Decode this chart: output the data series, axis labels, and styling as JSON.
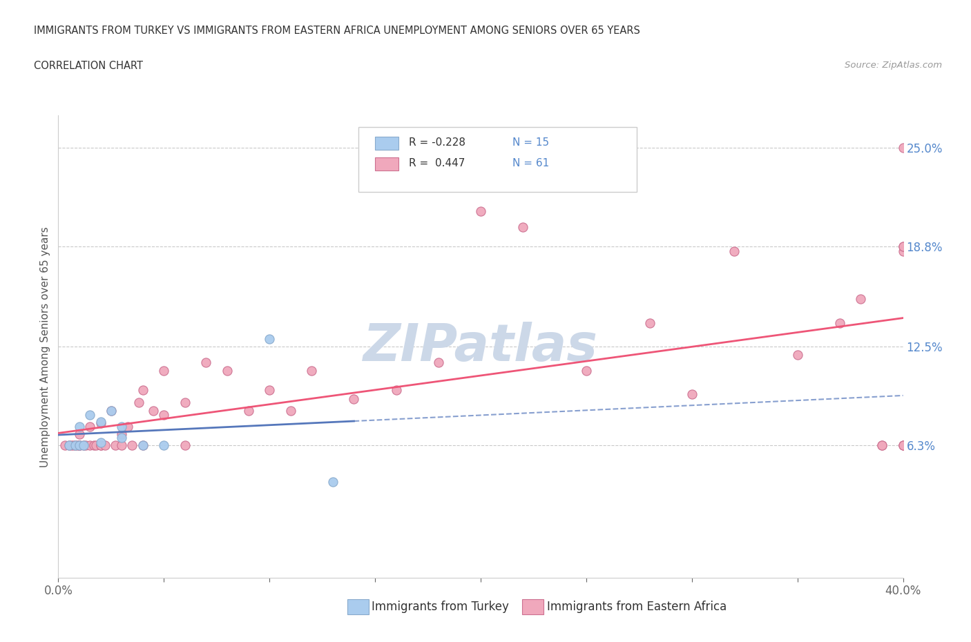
{
  "title_line1": "IMMIGRANTS FROM TURKEY VS IMMIGRANTS FROM EASTERN AFRICA UNEMPLOYMENT AMONG SENIORS OVER 65 YEARS",
  "title_line2": "CORRELATION CHART",
  "source": "Source: ZipAtlas.com",
  "ylabel": "Unemployment Among Seniors over 65 years",
  "xlim": [
    0.0,
    0.4
  ],
  "ylim": [
    -0.02,
    0.27
  ],
  "ytick_labels_right": [
    "25.0%",
    "18.8%",
    "12.5%",
    "6.3%"
  ],
  "ytick_positions_right": [
    0.25,
    0.188,
    0.125,
    0.063
  ],
  "hline_positions": [
    0.25,
    0.188,
    0.125,
    0.063
  ],
  "turkey_color": "#aaccee",
  "turkey_edge_color": "#88aacc",
  "eastern_africa_color": "#f0a8bc",
  "eastern_africa_edge_color": "#cc7090",
  "regression_turkey_color": "#5577bb",
  "regression_africa_color": "#ee5577",
  "watermark_color": "#ccd8e8",
  "legend_r_turkey": "R = -0.228",
  "legend_n_turkey": "N = 15",
  "legend_r_africa": "R =  0.447",
  "legend_n_africa": "N = 61",
  "legend_label_turkey": "Immigrants from Turkey",
  "legend_label_africa": "Immigrants from Eastern Africa",
  "turkey_x": [
    0.005,
    0.008,
    0.01,
    0.01,
    0.012,
    0.015,
    0.02,
    0.02,
    0.025,
    0.03,
    0.03,
    0.04,
    0.05,
    0.1,
    0.13
  ],
  "turkey_y": [
    0.063,
    0.063,
    0.063,
    0.075,
    0.063,
    0.082,
    0.078,
    0.065,
    0.085,
    0.068,
    0.075,
    0.063,
    0.063,
    0.13,
    0.04
  ],
  "eastern_africa_x": [
    0.003,
    0.005,
    0.006,
    0.007,
    0.008,
    0.009,
    0.01,
    0.01,
    0.01,
    0.01,
    0.012,
    0.013,
    0.015,
    0.015,
    0.017,
    0.018,
    0.02,
    0.02,
    0.02,
    0.022,
    0.025,
    0.027,
    0.03,
    0.03,
    0.033,
    0.035,
    0.038,
    0.04,
    0.04,
    0.045,
    0.05,
    0.05,
    0.06,
    0.06,
    0.07,
    0.08,
    0.09,
    0.1,
    0.11,
    0.12,
    0.14,
    0.16,
    0.18,
    0.2,
    0.22,
    0.25,
    0.28,
    0.3,
    0.32,
    0.35,
    0.37,
    0.38,
    0.39,
    0.39,
    0.4,
    0.4,
    0.4,
    0.4,
    0.4,
    0.4,
    0.4
  ],
  "eastern_africa_y": [
    0.063,
    0.063,
    0.063,
    0.063,
    0.063,
    0.063,
    0.063,
    0.063,
    0.063,
    0.07,
    0.063,
    0.063,
    0.063,
    0.075,
    0.063,
    0.063,
    0.063,
    0.063,
    0.077,
    0.063,
    0.085,
    0.063,
    0.063,
    0.07,
    0.075,
    0.063,
    0.09,
    0.098,
    0.063,
    0.085,
    0.11,
    0.082,
    0.09,
    0.063,
    0.115,
    0.11,
    0.085,
    0.098,
    0.085,
    0.11,
    0.092,
    0.098,
    0.115,
    0.21,
    0.2,
    0.11,
    0.14,
    0.095,
    0.185,
    0.12,
    0.14,
    0.155,
    0.063,
    0.063,
    0.185,
    0.188,
    0.188,
    0.063,
    0.063,
    0.063,
    0.25
  ]
}
